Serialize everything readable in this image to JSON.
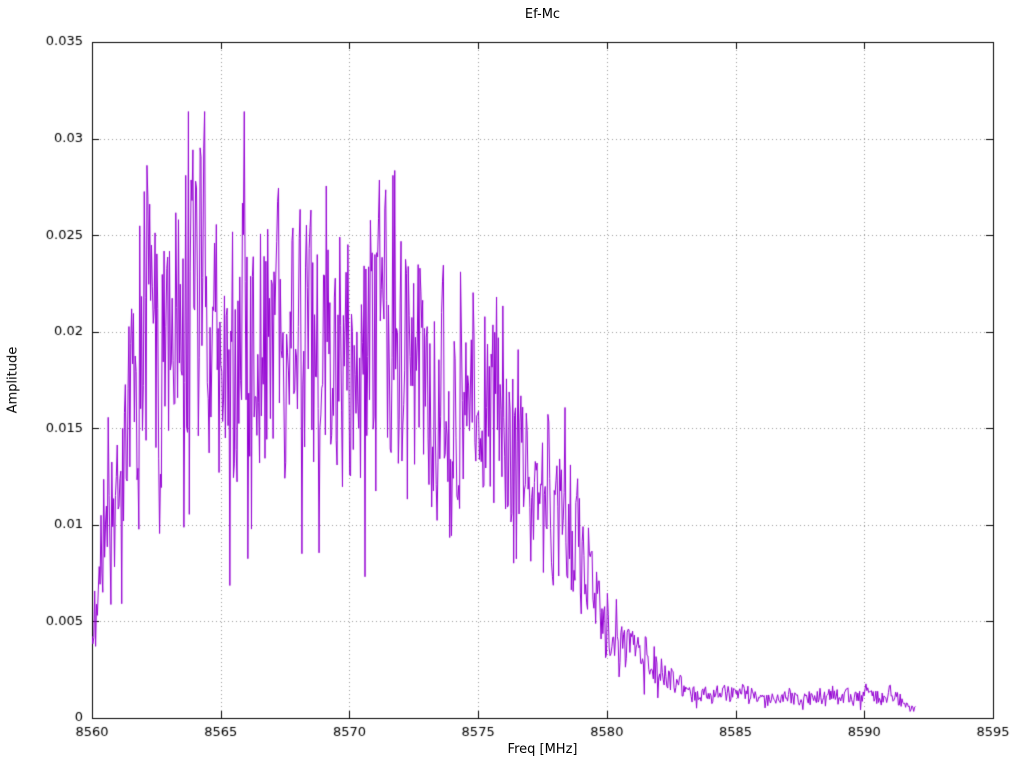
{
  "chart_data": {
    "type": "line",
    "title": "Ef-Mc",
    "xlabel": "Freq [MHz]",
    "ylabel": "Amplitude",
    "xlim": [
      8560,
      8595
    ],
    "ylim": [
      0,
      0.035
    ],
    "xticks": [
      8560,
      8565,
      8570,
      8575,
      8580,
      8585,
      8590,
      8595
    ],
    "xtick_labels": [
      "8560",
      "8565",
      "8570",
      "8575",
      "8580",
      "8585",
      "8590",
      "8595"
    ],
    "yticks": [
      0,
      0.005,
      0.01,
      0.015,
      0.02,
      0.025,
      0.03,
      0.035
    ],
    "ytick_labels": [
      "0",
      "0.005",
      "0.01",
      "0.015",
      "0.02",
      "0.025",
      "0.03",
      "0.035"
    ],
    "grid": true,
    "grid_color": "#9a9a9a",
    "axis_color": "#000000",
    "line_color": "#9400d3",
    "background": "#ffffff",
    "legend": "none",
    "series": [
      {
        "name": "Ef-Mc",
        "x_start": 8560.0,
        "x_end": 8592.0,
        "sample_step": 0.035,
        "description": "Noisy band-limited spectrum: rises sharply from ~0.003 at 8560 MHz, fluctuates around 0.019-0.024 (peak excursion ~0.0314 near 8564 MHz) through 8573 MHz, rolls off through 8575-8580 MHz, then settles to a ~0.001 noise floor from 8583 to 8592 MHz where the trace ends.",
        "envelope": [
          [
            8560.0,
            0.003
          ],
          [
            8560.2,
            0.0075
          ],
          [
            8560.6,
            0.01
          ],
          [
            8561.0,
            0.0105
          ],
          [
            8561.5,
            0.015
          ],
          [
            8562.0,
            0.0195
          ],
          [
            8562.5,
            0.021
          ],
          [
            8563.0,
            0.0215
          ],
          [
            8563.6,
            0.0235
          ],
          [
            8564.2,
            0.0245
          ],
          [
            8564.8,
            0.0225
          ],
          [
            8565.5,
            0.0215
          ],
          [
            8566.2,
            0.022
          ],
          [
            8567.0,
            0.0215
          ],
          [
            8568.0,
            0.0195
          ],
          [
            8569.0,
            0.02
          ],
          [
            8570.0,
            0.0205
          ],
          [
            8571.0,
            0.0195
          ],
          [
            8572.0,
            0.0205
          ],
          [
            8573.0,
            0.019
          ],
          [
            8574.0,
            0.017
          ],
          [
            8575.0,
            0.016
          ],
          [
            8576.0,
            0.015
          ],
          [
            8577.0,
            0.013
          ],
          [
            8578.0,
            0.011
          ],
          [
            8579.0,
            0.0085
          ],
          [
            8579.8,
            0.0062
          ],
          [
            8580.5,
            0.0045
          ],
          [
            8581.2,
            0.0032
          ],
          [
            8582.0,
            0.0022
          ],
          [
            8583.0,
            0.0016
          ],
          [
            8584.5,
            0.0013
          ],
          [
            8586.0,
            0.0011
          ],
          [
            8588.0,
            0.001
          ],
          [
            8590.0,
            0.0012
          ],
          [
            8591.3,
            0.001
          ],
          [
            8592.0,
            0.0005
          ]
        ],
        "noise": {
          "seed": 1723901,
          "rel": 0.34,
          "walk_decay": 0.9,
          "walk_step": 0.16,
          "dip_prob": 0.045,
          "dip_factor": 0.52,
          "spike_prob": 0.035,
          "spike_factor": 1.18,
          "y_max": 0.0314,
          "y_min": 0.0002
        }
      }
    ]
  }
}
